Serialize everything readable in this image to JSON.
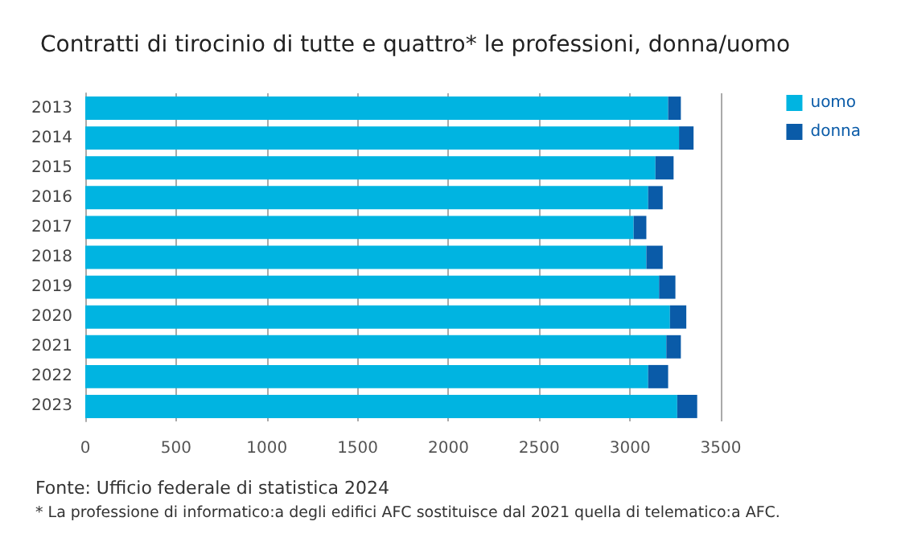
{
  "chart_data": {
    "type": "bar",
    "orientation": "horizontal",
    "stacked": true,
    "title": "Contratti di tirocinio di tutte e quattro* le professioni, donna/uomo",
    "categories": [
      "2013",
      "2014",
      "2015",
      "2016",
      "2017",
      "2018",
      "2019",
      "2020",
      "2021",
      "2022",
      "2023"
    ],
    "series": [
      {
        "name": "uomo",
        "color": "#00b4e1",
        "values": [
          3210,
          3270,
          3140,
          3100,
          3020,
          3090,
          3160,
          3220,
          3200,
          3100,
          3260
        ]
      },
      {
        "name": "donna",
        "color": "#0a5ba8",
        "values": [
          70,
          80,
          100,
          80,
          70,
          90,
          90,
          90,
          80,
          110,
          110
        ]
      }
    ],
    "xlim": [
      0,
      3500
    ],
    "xticks": [
      0,
      500,
      1000,
      1500,
      2000,
      2500,
      3000,
      3500
    ],
    "grid": "x",
    "legend": "top right",
    "annotations": [
      "Fonte: Ufficio federale di statistica 2024",
      "* La professione di informatico:a degli edifici AFC sostituisce dal 2021 quella di telematico:a AFC."
    ]
  }
}
